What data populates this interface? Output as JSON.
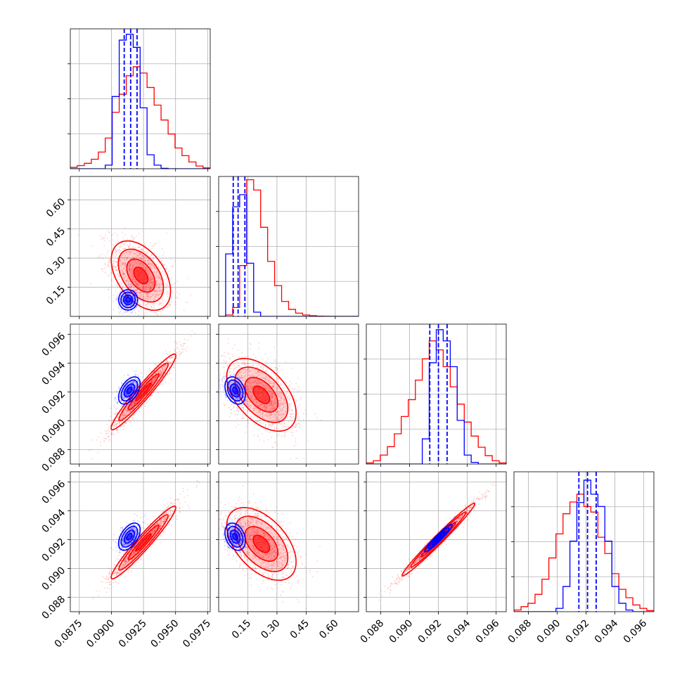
{
  "chart_data": {
    "type": "corner",
    "n_params": 4,
    "grid": true,
    "series": [
      {
        "color": "#0000ff"
      },
      {
        "color": "#ff0000"
      }
    ],
    "params": [
      {
        "range": [
          0.0868,
          0.0977
        ],
        "ticks": [
          0.0875,
          0.09,
          0.0925,
          0.095,
          0.0975
        ],
        "tick_labels": [
          "0.0875",
          "0.0900",
          "0.0925",
          "0.0950",
          "0.0975"
        ]
      },
      {
        "range": [
          0.0,
          0.72
        ],
        "ticks": [
          0.15,
          0.3,
          0.45,
          0.6
        ],
        "tick_labels": [
          "0.15",
          "0.30",
          "0.45",
          "0.60"
        ]
      },
      {
        "range": [
          0.087,
          0.0967
        ],
        "ticks": [
          0.088,
          0.09,
          0.092,
          0.094,
          0.096
        ],
        "tick_labels": [
          "0.088",
          "0.090",
          "0.092",
          "0.094",
          "0.096"
        ]
      },
      {
        "range": [
          0.087,
          0.0967
        ],
        "ticks": [
          0.088,
          0.09,
          0.092,
          0.094,
          0.096
        ],
        "tick_labels": [
          "0.088",
          "0.090",
          "0.092",
          "0.094",
          "0.096"
        ]
      }
    ],
    "histograms": [
      {
        "param": 0,
        "bin_edges": [
          0.0868,
          0.08734,
          0.08789,
          0.08844,
          0.08898,
          0.08952,
          0.09006,
          0.09061,
          0.09116,
          0.0917,
          0.09224,
          0.09278,
          0.09333,
          0.09387,
          0.09442,
          0.09496,
          0.0955,
          0.09604,
          0.09659,
          0.09714,
          0.09768
        ],
        "red": [
          0.3,
          0.7,
          1.2,
          2.1,
          3.7,
          6.8,
          12.5,
          16.5,
          20.6,
          22.6,
          21.2,
          18.0,
          14.1,
          10.8,
          7.7,
          4.6,
          2.9,
          1.5,
          0.6,
          0.2
        ],
        "blue": [
          0,
          0,
          0,
          0,
          0,
          0.8,
          16.0,
          28.5,
          29.8,
          26.9,
          13.5,
          3.1,
          0.8,
          0.1,
          0,
          0,
          0,
          0,
          0,
          0
        ],
        "quantiles_blue": [
          0.091,
          0.0915,
          0.092
        ],
        "ylim": [
          0,
          31
        ]
      },
      {
        "param": 1,
        "bin_edges": [
          0.0,
          0.036,
          0.072,
          0.108,
          0.144,
          0.18,
          0.216,
          0.252,
          0.288,
          0.324,
          0.36,
          0.396,
          0.432,
          0.468,
          0.504,
          0.54,
          0.576,
          0.612,
          0.648,
          0.684,
          0.72
        ],
        "red": [
          0,
          0.3,
          1.9,
          10.9,
          29.3,
          27.1,
          19.1,
          11.8,
          6.6,
          3.2,
          1.5,
          0.7,
          0.3,
          0.15,
          0.05,
          0.02,
          0,
          0,
          0,
          0
        ],
        "blue": [
          0,
          13.4,
          23.5,
          26.1,
          11.4,
          0.9,
          0,
          0,
          0,
          0,
          0,
          0,
          0,
          0,
          0,
          0,
          0,
          0,
          0,
          0
        ],
        "quantiles_blue": [
          0.075,
          0.1,
          0.135
        ],
        "ylim": [
          0,
          30
        ]
      },
      {
        "param": 2,
        "bin_edges": [
          0.087,
          0.08749,
          0.08797,
          0.08846,
          0.08894,
          0.08942,
          0.08991,
          0.0904,
          0.09088,
          0.09136,
          0.09185,
          0.09233,
          0.09282,
          0.0933,
          0.09379,
          0.09427,
          0.09476,
          0.09524,
          0.09573,
          0.09621,
          0.0967
        ],
        "red": [
          0.2,
          0.6,
          1.6,
          3.1,
          5.4,
          8.5,
          11.5,
          15.0,
          18.8,
          22.0,
          20.4,
          17.4,
          13.8,
          10.7,
          7.5,
          5.0,
          3.0,
          1.5,
          0.6,
          0.2
        ],
        "blue": [
          0,
          0,
          0,
          0,
          0,
          0,
          0,
          0,
          4.5,
          18.1,
          24.0,
          22.0,
          17.4,
          7.8,
          1.6,
          0.3,
          0,
          0,
          0,
          0
        ],
        "quantiles_blue": [
          0.0914,
          0.092,
          0.0926
        ],
        "ylim": [
          0,
          25
        ]
      },
      {
        "param": 3,
        "bin_edges": [
          0.087,
          0.08749,
          0.08797,
          0.08846,
          0.08894,
          0.08942,
          0.08991,
          0.0904,
          0.09088,
          0.09136,
          0.09185,
          0.09233,
          0.09282,
          0.0933,
          0.09379,
          0.09427,
          0.09476,
          0.09524,
          0.09573,
          0.09621,
          0.0967
        ],
        "red": [
          0.3,
          0.9,
          1.5,
          3.1,
          5.8,
          9.6,
          13.9,
          17.5,
          19.6,
          21.0,
          18.8,
          17.8,
          13.3,
          10.4,
          6.8,
          4.0,
          2.5,
          1.2,
          0.6,
          0.2
        ],
        "blue": [
          0,
          0,
          0,
          0,
          0,
          0,
          0.6,
          4.5,
          12.6,
          19.5,
          23.5,
          21.0,
          18.8,
          12.6,
          4.5,
          1.5,
          0.3,
          0,
          0,
          0
        ],
        "quantiles_blue": [
          0.0915,
          0.0921,
          0.0927
        ],
        "ylim": [
          0,
          25
        ]
      }
    ],
    "pairs": [
      {
        "x_param": 0,
        "y_param": 1,
        "red": {
          "mean": [
            0.0923,
            0.21
          ],
          "std": [
            0.0011,
            0.085
          ],
          "corr": -0.45,
          "n_points": 1300
        },
        "blue": {
          "mean": [
            0.0913,
            0.085
          ],
          "std": [
            0.00035,
            0.025
          ],
          "corr": 0.0,
          "n_points": 500
        }
      },
      {
        "x_param": 0,
        "y_param": 2,
        "red": {
          "mean": [
            0.0925,
            0.092
          ],
          "std": [
            0.0012,
            0.00125
          ],
          "corr": 0.96,
          "n_points": 1300
        },
        "blue": {
          "mean": [
            0.0914,
            0.0921
          ],
          "std": [
            0.0004,
            0.00045
          ],
          "corr": 0.5,
          "n_points": 500
        }
      },
      {
        "x_param": 1,
        "y_param": 2,
        "red": {
          "mean": [
            0.22,
            0.0918
          ],
          "std": [
            0.085,
            0.0012
          ],
          "corr": -0.5,
          "n_points": 1300
        },
        "blue": {
          "mean": [
            0.085,
            0.0921
          ],
          "std": [
            0.025,
            0.00045
          ],
          "corr": -0.3,
          "n_points": 500
        }
      },
      {
        "x_param": 0,
        "y_param": 3,
        "red": {
          "mean": [
            0.0925,
            0.0918
          ],
          "std": [
            0.0012,
            0.0012
          ],
          "corr": 0.96,
          "n_points": 1300
        },
        "blue": {
          "mean": [
            0.0914,
            0.0922
          ],
          "std": [
            0.0004,
            0.00045
          ],
          "corr": 0.5,
          "n_points": 500
        }
      },
      {
        "x_param": 1,
        "y_param": 3,
        "red": {
          "mean": [
            0.22,
            0.0917
          ],
          "std": [
            0.085,
            0.0012
          ],
          "corr": -0.5,
          "n_points": 1300
        },
        "blue": {
          "mean": [
            0.085,
            0.0922
          ],
          "std": [
            0.025,
            0.00045
          ],
          "corr": -0.3,
          "n_points": 500
        }
      },
      {
        "x_param": 2,
        "y_param": 3,
        "red": {
          "mean": [
            0.092,
            0.092
          ],
          "std": [
            0.0012,
            0.0012
          ],
          "corr": 0.985,
          "n_points": 1300
        },
        "blue": {
          "mean": [
            0.092,
            0.0921
          ],
          "std": [
            0.00045,
            0.00045
          ],
          "corr": 0.95,
          "n_points": 500
        }
      }
    ]
  }
}
